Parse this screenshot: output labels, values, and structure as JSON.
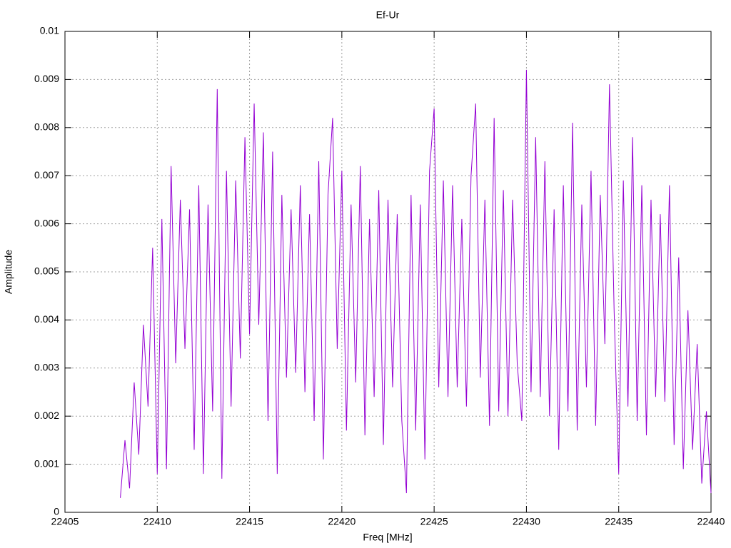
{
  "chart_data": {
    "type": "line",
    "title": "Ef-Ur",
    "x_label": "Freq [MHz]",
    "y_label": "Amplitude",
    "xlim": [
      22405,
      22440
    ],
    "xticks": [
      22405,
      22410,
      22415,
      22420,
      22425,
      22430,
      22435,
      22440
    ],
    "ylim": [
      0,
      0.01
    ],
    "yticks": [
      0,
      0.001,
      0.002,
      0.003,
      0.004,
      0.005,
      0.006,
      0.007,
      0.008,
      0.009,
      0.01
    ],
    "grid": true,
    "series": [
      {
        "color": "#9400d3",
        "x": [
          22408,
          22408.25,
          22408.5,
          22408.75,
          22409,
          22409.25,
          22409.5,
          22409.75,
          22410,
          22410.25,
          22410.5,
          22410.75,
          22411,
          22411.25,
          22411.5,
          22411.75,
          22412,
          22412.25,
          22412.5,
          22412.75,
          22413,
          22413.25,
          22413.5,
          22413.75,
          22414,
          22414.25,
          22414.5,
          22414.75,
          22415,
          22415.25,
          22415.5,
          22415.75,
          22416,
          22416.25,
          22416.5,
          22416.75,
          22417,
          22417.25,
          22417.5,
          22417.75,
          22418,
          22418.25,
          22418.5,
          22418.75,
          22419,
          22419.25,
          22419.5,
          22419.75,
          22420,
          22420.25,
          22420.5,
          22420.75,
          22421,
          22421.25,
          22421.5,
          22421.75,
          22422,
          22422.25,
          22422.5,
          22422.75,
          22423,
          22423.25,
          22423.5,
          22423.75,
          22424,
          22424.25,
          22424.5,
          22424.75,
          22425,
          22425.25,
          22425.5,
          22425.75,
          22426,
          22426.25,
          22426.5,
          22426.75,
          22427,
          22427.25,
          22427.5,
          22427.75,
          22428,
          22428.25,
          22428.5,
          22428.75,
          22429,
          22429.25,
          22429.5,
          22429.75,
          22430,
          22430.25,
          22430.5,
          22430.75,
          22431,
          22431.25,
          22431.5,
          22431.75,
          22432,
          22432.25,
          22432.5,
          22432.75,
          22433,
          22433.25,
          22433.5,
          22433.75,
          22434,
          22434.25,
          22434.5,
          22434.75,
          22435,
          22435.25,
          22435.5,
          22435.75,
          22436,
          22436.25,
          22436.5,
          22436.75,
          22437,
          22437.25,
          22437.5,
          22437.75,
          22438,
          22438.25,
          22438.5,
          22438.75,
          22439,
          22439.25,
          22439.5,
          22439.75,
          22440
        ],
        "values": [
          0.0003,
          0.0015,
          0.0005,
          0.0027,
          0.0012,
          0.0039,
          0.0022,
          0.0055,
          0.0008,
          0.0061,
          0.0009,
          0.0072,
          0.0031,
          0.0065,
          0.0034,
          0.0063,
          0.0013,
          0.0068,
          0.0008,
          0.0064,
          0.0021,
          0.0088,
          0.0007,
          0.0071,
          0.0022,
          0.0069,
          0.0032,
          0.0078,
          0.0037,
          0.0085,
          0.0039,
          0.0079,
          0.0019,
          0.0075,
          0.0008,
          0.0066,
          0.0028,
          0.0063,
          0.0029,
          0.0068,
          0.0025,
          0.0062,
          0.0019,
          0.0073,
          0.0011,
          0.0066,
          0.0082,
          0.0034,
          0.0071,
          0.0017,
          0.0064,
          0.0027,
          0.0072,
          0.0016,
          0.0061,
          0.0024,
          0.0067,
          0.0014,
          0.0065,
          0.0026,
          0.0062,
          0.0019,
          0.0004,
          0.0066,
          0.0017,
          0.0064,
          0.0011,
          0.0071,
          0.0084,
          0.0026,
          0.0069,
          0.0024,
          0.0068,
          0.0026,
          0.0061,
          0.0022,
          0.007,
          0.0085,
          0.0028,
          0.0065,
          0.0018,
          0.0082,
          0.0021,
          0.0067,
          0.002,
          0.0065,
          0.0031,
          0.0019,
          0.0092,
          0.0025,
          0.0078,
          0.0024,
          0.0073,
          0.002,
          0.0063,
          0.0013,
          0.0068,
          0.0021,
          0.0081,
          0.0017,
          0.0064,
          0.0026,
          0.0071,
          0.0018,
          0.0066,
          0.0035,
          0.0089,
          0.0042,
          0.0008,
          0.0069,
          0.0022,
          0.0078,
          0.0019,
          0.0068,
          0.0016,
          0.0065,
          0.0024,
          0.0062,
          0.0023,
          0.0068,
          0.0014,
          0.0053,
          0.0009,
          0.0042,
          0.0013,
          0.0035,
          0.0006,
          0.0021,
          0.0004
        ]
      }
    ]
  }
}
